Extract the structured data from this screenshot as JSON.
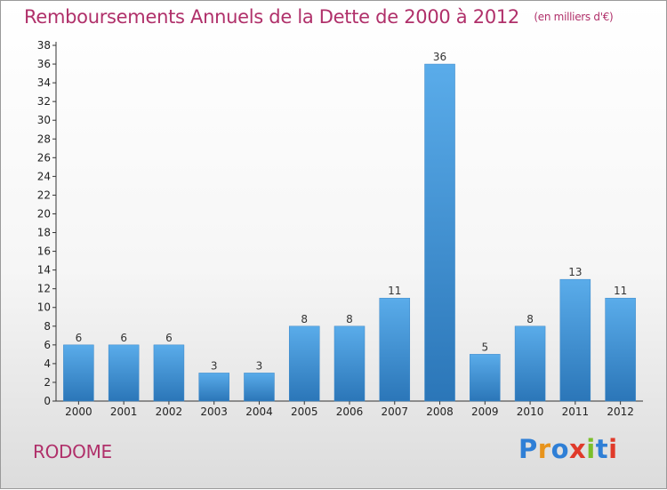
{
  "header": {
    "title": "Remboursements Annuels de la Dette de 2000 à 2012",
    "unit": "(en milliers d'€)"
  },
  "footer": {
    "commune": "RODOME",
    "logo_letters": [
      "P",
      "r",
      "o",
      "x",
      "i",
      "t",
      "i"
    ]
  },
  "colors": {
    "title": "#b0306a",
    "bar_top": "#5aacea",
    "bar_bottom": "#2b76b8",
    "logo": [
      "#2f7fd6",
      "#e8941c",
      "#2f7fd6",
      "#e03a2a",
      "#7bbf2a",
      "#2f7fd6",
      "#e03a2a"
    ]
  },
  "chart_data": {
    "type": "bar",
    "categories": [
      "2000",
      "2001",
      "2002",
      "2003",
      "2004",
      "2005",
      "2006",
      "2007",
      "2008",
      "2009",
      "2010",
      "2011",
      "2012"
    ],
    "values": [
      6,
      6,
      6,
      3,
      3,
      8,
      8,
      11,
      36,
      5,
      8,
      13,
      11
    ],
    "title": "Remboursements Annuels de la Dette de 2000 à 2012",
    "subtitle": "(en milliers d'€)",
    "xlabel": "",
    "ylabel": "",
    "ylim": [
      0,
      38
    ],
    "yticks": [
      0,
      2,
      4,
      6,
      8,
      10,
      12,
      14,
      16,
      18,
      20,
      22,
      24,
      26,
      28,
      30,
      32,
      34,
      36,
      38
    ],
    "grid": false,
    "data_labels": true
  }
}
